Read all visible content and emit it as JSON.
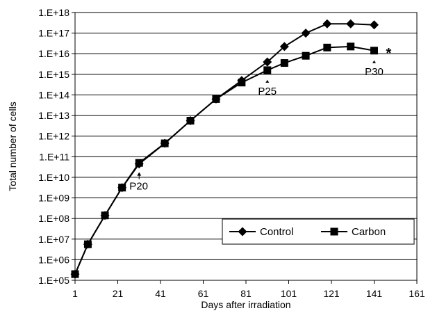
{
  "chart_data": {
    "type": "line",
    "title": "",
    "xlabel": "Days after irradiation",
    "ylabel": "Total number of cells",
    "xlim": [
      1,
      161
    ],
    "xticks": [
      1,
      21,
      41,
      61,
      81,
      101,
      121,
      141,
      161
    ],
    "y_scale": "log",
    "ylim_exponent": [
      5,
      18
    ],
    "ytick_labels": [
      "1.E+05",
      "1.E+06",
      "1.E+07",
      "1.E+08",
      "1.E+09",
      "1.E+10",
      "1.E+11",
      "1.E+12",
      "1.E+13",
      "1.E+14",
      "1.E+15",
      "1.E+16",
      "1.E+17",
      "1.E+18"
    ],
    "grid": "horizontal",
    "legend_position": "bottom-right",
    "series": [
      {
        "name": "Control",
        "marker": "diamond",
        "x": [
          1,
          7,
          15,
          23,
          31,
          43,
          55,
          67,
          79,
          91,
          99,
          109,
          119,
          130,
          141
        ],
        "log10_y": [
          5.3,
          6.75,
          8.15,
          9.5,
          10.65,
          11.65,
          12.75,
          13.8,
          14.7,
          15.6,
          16.35,
          17.0,
          17.45,
          17.45,
          17.4
        ]
      },
      {
        "name": "Carbon",
        "marker": "square",
        "x": [
          1,
          7,
          15,
          23,
          31,
          43,
          55,
          67,
          79,
          91,
          99,
          109,
          119,
          130,
          141
        ],
        "log10_y": [
          5.3,
          6.75,
          8.15,
          9.5,
          10.7,
          11.65,
          12.75,
          13.8,
          14.6,
          15.2,
          15.55,
          15.9,
          16.3,
          16.35,
          16.15
        ]
      }
    ],
    "annotations": [
      {
        "text": "P20",
        "x": 31,
        "log10_y": 10.65,
        "style": "arrow"
      },
      {
        "text": "P25",
        "x": 91,
        "log10_y": 15.2,
        "style": "triangle"
      },
      {
        "text": "P30",
        "x": 141,
        "log10_y": 16.15,
        "style": "triangle"
      },
      {
        "text": "*",
        "x": 141,
        "log10_y": 16.15,
        "style": "star"
      }
    ],
    "colors": {
      "line": "#000000",
      "grid": "#000000",
      "background": "#ffffff"
    }
  }
}
